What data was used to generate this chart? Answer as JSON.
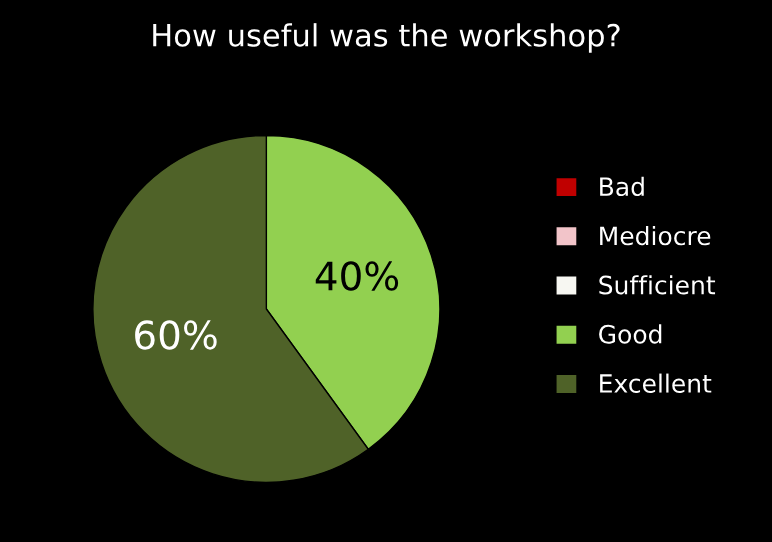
{
  "chart_data": {
    "type": "pie",
    "title": "How useful was the workshop?",
    "categories": [
      "Bad",
      "Mediocre",
      "Sufficient",
      "Good",
      "Excellent"
    ],
    "values": [
      0,
      0,
      0,
      40,
      60
    ],
    "colors": [
      "#c00000",
      "#f2c4c9",
      "#f7f7f2",
      "#92d050",
      "#4f6228"
    ],
    "value_labels": [
      null,
      null,
      null,
      "40%",
      "60%"
    ],
    "legend": "right"
  }
}
